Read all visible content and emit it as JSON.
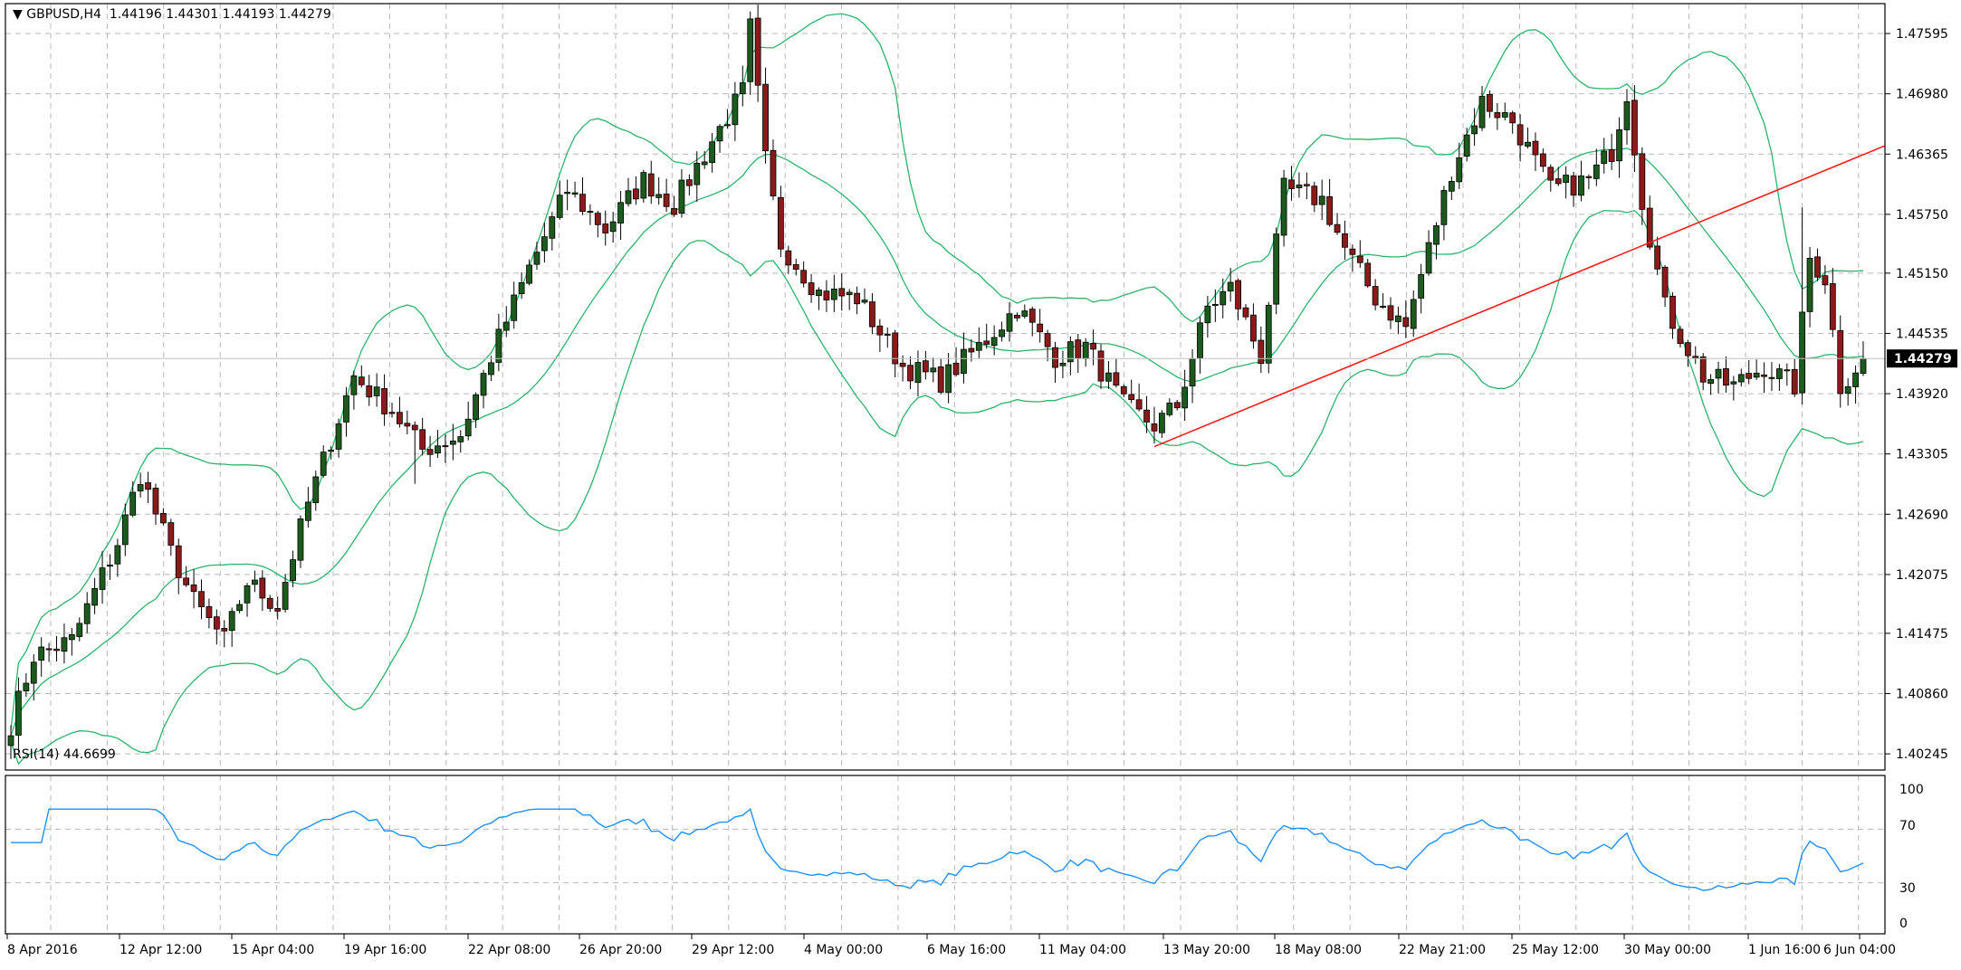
{
  "header": {
    "symbol_timeframe": "GBPUSD,H4",
    "open": "1.44196",
    "high": "1.44301",
    "low": "1.44193",
    "close": "1.44279"
  },
  "rsi_header": "RSI(14) 44.6699",
  "current_price_label": "1.44279",
  "colors": {
    "bull_body": "#1d5a1d",
    "bear_body": "#8b1a1a",
    "wick": "#000000",
    "bollinger": "#2db36b",
    "trendline": "#ff1a1a",
    "rsi_line": "#1e90ff",
    "grid": "#b8b8b8",
    "price_line": "#c0c0c0"
  },
  "chart_data": [
    {
      "type": "candlestick",
      "title": "GBPUSD,H4",
      "y_tick_labels": [
        "1.47595",
        "1.46980",
        "1.46365",
        "1.45750",
        "1.45150",
        "1.44535",
        "1.43920",
        "1.43305",
        "1.42690",
        "1.42075",
        "1.41475",
        "1.40860",
        "1.40245"
      ],
      "ylim": [
        1.4008,
        1.479
      ],
      "x_tick_labels": [
        "8 Apr 2016",
        "12 Apr 12:00",
        "15 Apr 04:00",
        "19 Apr 16:00",
        "22 Apr 08:00",
        "26 Apr 20:00",
        "29 Apr 12:00",
        "4 May 00:00",
        "6 May 16:00",
        "11 May 04:00",
        "13 May 20:00",
        "18 May 08:00",
        "22 May 21:00",
        "25 May 12:00",
        "30 May 00:00",
        "1 Jun 16:00",
        "6 Jun 04:00"
      ],
      "current_price": 1.44279,
      "close_path_keypoints": [
        [
          0,
          1.4055
        ],
        [
          3,
          1.4125
        ],
        [
          8,
          1.414
        ],
        [
          14,
          1.424
        ],
        [
          17,
          1.431
        ],
        [
          21,
          1.423
        ],
        [
          24,
          1.418
        ],
        [
          28,
          1.414
        ],
        [
          31,
          1.42
        ],
        [
          35,
          1.4175
        ],
        [
          39,
          1.428
        ],
        [
          45,
          1.441
        ],
        [
          50,
          1.4375
        ],
        [
          54,
          1.4335
        ],
        [
          59,
          1.435
        ],
        [
          63,
          1.443
        ],
        [
          68,
          1.452
        ],
        [
          73,
          1.46
        ],
        [
          78,
          1.456
        ],
        [
          83,
          1.461
        ],
        [
          87,
          1.4585
        ],
        [
          92,
          1.465
        ],
        [
          96,
          1.47
        ],
        [
          97,
          1.4765
        ],
        [
          99,
          1.463
        ],
        [
          101,
          1.4545
        ],
        [
          106,
          1.4495
        ],
        [
          111,
          1.449
        ],
        [
          117,
          1.442
        ],
        [
          122,
          1.4405
        ],
        [
          127,
          1.444
        ],
        [
          132,
          1.448
        ],
        [
          137,
          1.443
        ],
        [
          141,
          1.444
        ],
        [
          146,
          1.438
        ],
        [
          150,
          1.436
        ],
        [
          153,
          1.438
        ],
        [
          157,
          1.448
        ],
        [
          160,
          1.45
        ],
        [
          164,
          1.443
        ],
        [
          167,
          1.46
        ],
        [
          172,
          1.459
        ],
        [
          175,
          1.454
        ],
        [
          179,
          1.449
        ],
        [
          183,
          1.446
        ],
        [
          186,
          1.454
        ],
        [
          189,
          1.462
        ],
        [
          193,
          1.469
        ],
        [
          197,
          1.467
        ],
        [
          202,
          1.46
        ],
        [
          207,
          1.461
        ],
        [
          210,
          1.464
        ],
        [
          212,
          1.47
        ],
        [
          214,
          1.459
        ],
        [
          217,
          1.448
        ],
        [
          222,
          1.441
        ],
        [
          226,
          1.44
        ],
        [
          230,
          1.442
        ],
        [
          234,
          1.44
        ],
        [
          236,
          1.453
        ],
        [
          238,
          1.451
        ],
        [
          240,
          1.44
        ],
        [
          243,
          1.44279
        ]
      ],
      "trendline": {
        "from": [
          "13 May 20:00",
          1.4338
        ],
        "to": [
          "6 Jun 04:00+",
          1.4645
        ]
      }
    },
    {
      "type": "line",
      "title": "RSI(14) 44.6699",
      "y_tick_labels": [
        "100",
        "70",
        "30",
        "0"
      ],
      "ylim": [
        0,
        100
      ],
      "levels": [
        70,
        30
      ],
      "last_value": 44.6699
    }
  ]
}
